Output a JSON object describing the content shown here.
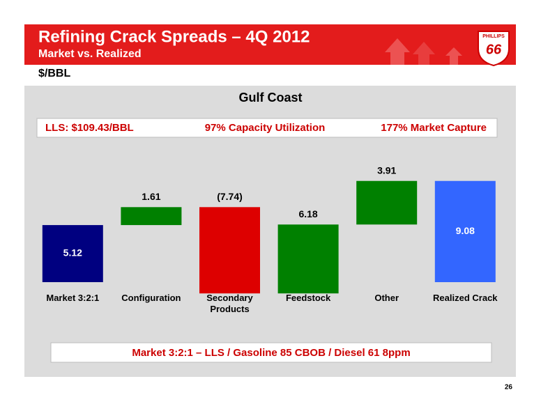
{
  "header": {
    "title": "Refining Crack Spreads – 4Q 2012",
    "subtitle": "Market vs. Realized",
    "logo_top": "PHILLIPS",
    "logo_number": "66"
  },
  "unit": "$/BBL",
  "info": [
    "LLS:  $109.43/BBL",
    "97% Capacity Utilization",
    "177% Market Capture"
  ],
  "chart_data": {
    "type": "waterfall",
    "title": "Gulf Coast",
    "categories": [
      "Market 3:2:1",
      "Configuration",
      "Secondary Products",
      "Feedstock",
      "Other",
      "Realized Crack"
    ],
    "values": [
      5.12,
      1.61,
      -7.74,
      6.18,
      3.91,
      9.08
    ],
    "value_labels": [
      "5.12",
      "1.61",
      "(7.74)",
      "6.18",
      "3.91",
      "9.08"
    ],
    "colors": [
      "#000080",
      "#008000",
      "#dd0000",
      "#008000",
      "#008000",
      "#3366ff"
    ],
    "totals": [
      false,
      false,
      false,
      false,
      false,
      true
    ]
  },
  "footnote": "Market 3:2:1 – LLS / Gasoline 85 CBOB / Diesel 61 8ppm",
  "page_number": "26"
}
